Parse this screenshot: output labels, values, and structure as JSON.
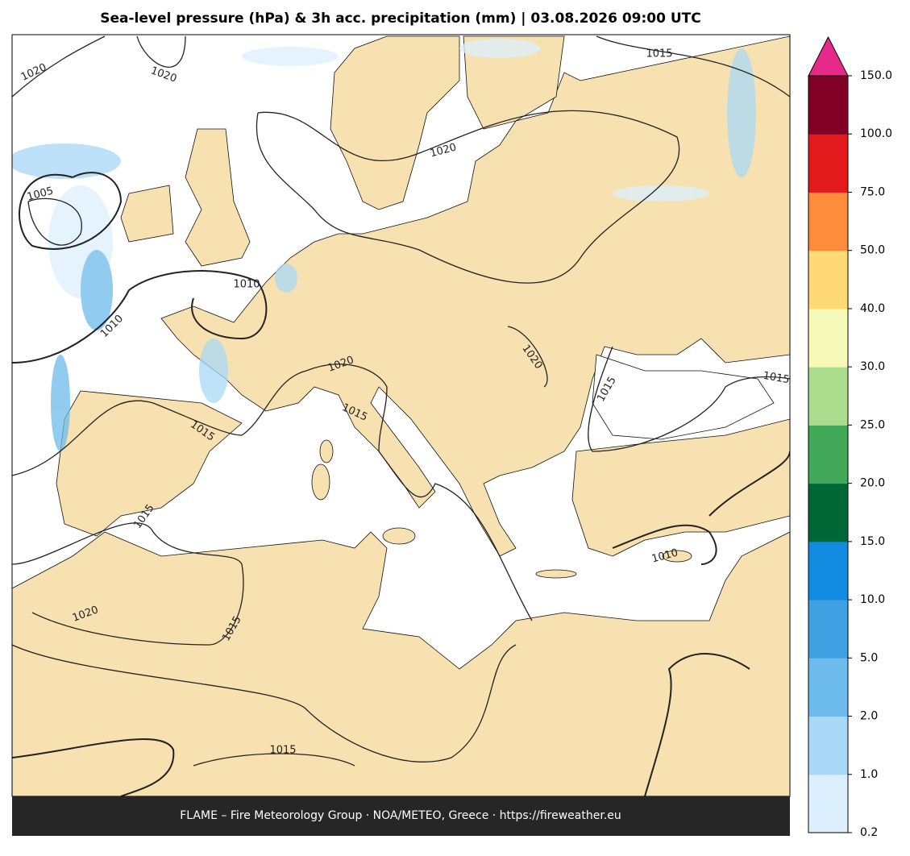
{
  "title": "Sea-level pressure (hPa) & 3h acc. precipitation (mm)  |  03.08.2026 09:00 UTC",
  "footer": "FLAME – Fire Meteorology Group · NOA/METEO, Greece · https://fireweather.eu",
  "colorbar": {
    "levels": [
      "0.2",
      "1.0",
      "2.0",
      "5.0",
      "10.0",
      "15.0",
      "20.0",
      "25.0",
      "30.0",
      "40.0",
      "50.0",
      "75.0",
      "100.0",
      "150.0"
    ],
    "colors": [
      "#dbeffd",
      "#a8d8f6",
      "#6dbbec",
      "#3fa1e2",
      "#118ce0",
      "#006837",
      "#41a85a",
      "#acdd8e",
      "#f7f9b9",
      "#fed976",
      "#fd8d3c",
      "#e31a1c",
      "#800026"
    ],
    "extend_color": "#e7298a"
  },
  "isobar_labels": [
    "1020",
    "1020",
    "1015",
    "1020",
    "1005",
    "1010",
    "1010",
    "1020",
    "1020",
    "1015",
    "1015",
    "1015",
    "1015",
    "1015",
    "1010",
    "1020",
    "1015",
    "1015"
  ]
}
